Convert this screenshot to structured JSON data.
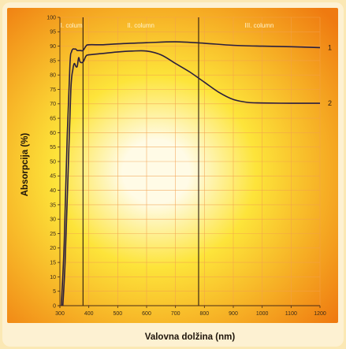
{
  "chart_data": {
    "type": "line",
    "title": "",
    "xlabel": "Valovna dolžina (nm)",
    "ylabel": "Absorpcija (%)",
    "xlim": [
      300,
      1200
    ],
    "ylim": [
      0,
      100
    ],
    "xticks": [
      "300",
      "400",
      "500",
      "600",
      "700",
      "800",
      "900",
      "1000",
      "1100",
      "1200"
    ],
    "yticks": [
      "0",
      "5",
      "10",
      "15",
      "20",
      "25",
      "30",
      "35",
      "40",
      "45",
      "50",
      "55",
      "60",
      "65",
      "70",
      "75",
      "80",
      "85",
      "90",
      "95",
      "100"
    ],
    "x_tick_values": [
      300,
      400,
      500,
      600,
      700,
      800,
      900,
      1000,
      1100,
      1200
    ],
    "y_tick_values": [
      0,
      5,
      10,
      15,
      20,
      25,
      30,
      35,
      40,
      45,
      50,
      55,
      60,
      65,
      70,
      75,
      80,
      85,
      90,
      95,
      100
    ],
    "grid": true,
    "background": "radial gradient, white-yellow center to orange edges",
    "dividers": [
      380,
      780
    ],
    "column_labels": [
      {
        "text": "I. colum",
        "x_from": 300,
        "x_to": 380
      },
      {
        "text": "II. column",
        "x_from": 380,
        "x_to": 780
      },
      {
        "text": "III. column",
        "x_from": 780,
        "x_to": 1200
      }
    ],
    "series": [
      {
        "name": "1",
        "color": "#2a1e3c",
        "x": [
          305,
          315,
          325,
          335,
          340,
          345,
          350,
          355,
          360,
          370,
          380,
          390,
          400,
          450,
          500,
          600,
          700,
          800,
          900,
          1000,
          1100,
          1200
        ],
        "y": [
          0,
          22,
          58,
          84,
          88,
          89,
          89,
          89,
          88.5,
          88.5,
          88.5,
          90,
          90.5,
          90.5,
          90.8,
          91.2,
          91.5,
          91,
          90.3,
          90,
          89.8,
          89.5
        ]
      },
      {
        "name": "2",
        "color": "#2a1e3c",
        "x": [
          310,
          318,
          328,
          338,
          345,
          350,
          355,
          360,
          365,
          370,
          380,
          390,
          400,
          450,
          500,
          550,
          600,
          650,
          700,
          750,
          800,
          850,
          900,
          950,
          1000,
          1100,
          1200
        ],
        "y": [
          0,
          15,
          45,
          75,
          82,
          84,
          83,
          83,
          86,
          84.5,
          84.5,
          86.5,
          87,
          87.5,
          88,
          88.3,
          88.3,
          87,
          84,
          81,
          77.5,
          74,
          71.5,
          70.5,
          70.3,
          70.2,
          70.2
        ]
      }
    ]
  },
  "colors": {
    "plot_center": "#fffbe6",
    "plot_mid": "#fde43a",
    "plot_edge": "#ef7a10",
    "grid": "#f3a04e",
    "axis": "#4a2c14",
    "divider": "#2a1a10",
    "line": "#2a1e3c"
  }
}
